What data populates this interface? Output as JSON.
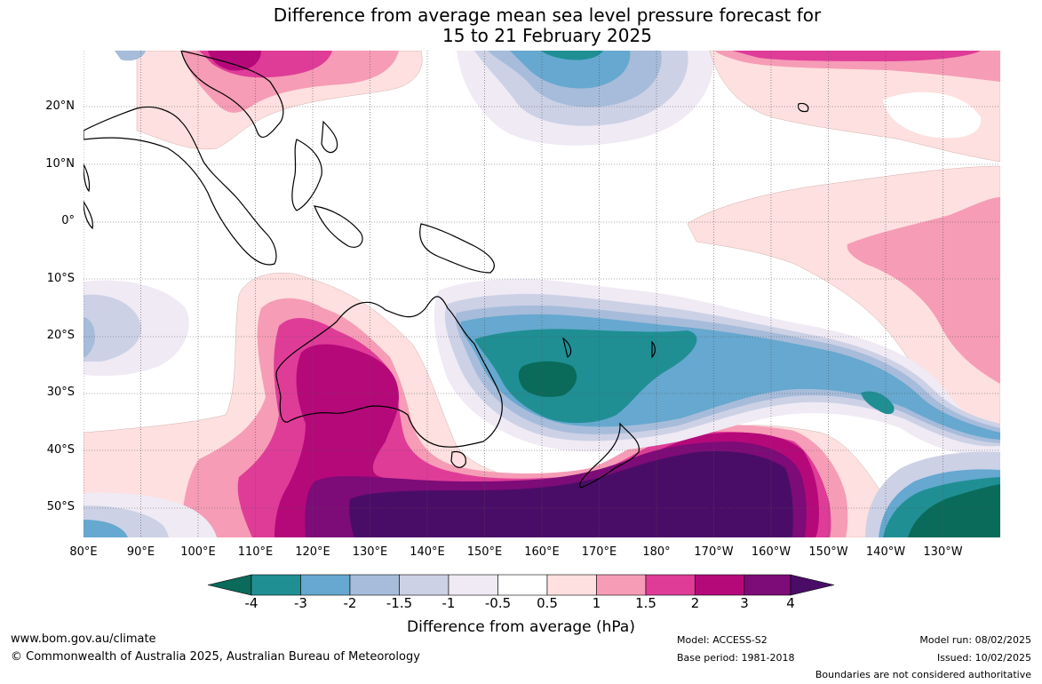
{
  "title_line1": "Difference from average mean sea level pressure forecast for",
  "title_line2": "15 to 21 February 2025",
  "lat_labels": [
    "20°N",
    "10°N",
    "0°",
    "10°S",
    "20°S",
    "30°S",
    "40°S",
    "50°S"
  ],
  "lon_labels": [
    "80°E",
    "90°E",
    "100°E",
    "110°E",
    "120°E",
    "130°E",
    "140°E",
    "150°E",
    "160°E",
    "170°E",
    "180°",
    "170°W",
    "160°W",
    "150°W",
    "140°W",
    "130°W"
  ],
  "colorbar": {
    "labels": [
      "-4",
      "-3",
      "-2",
      "-1.5",
      "-1",
      "-0.5",
      "0.5",
      "1",
      "1.5",
      "2",
      "3",
      "4"
    ],
    "colors": [
      "#0a6b5b",
      "#1f8f94",
      "#66a8cf",
      "#a6bcda",
      "#cdd1e6",
      "#efeaf4",
      "#ffffff",
      "#fde0df",
      "#f69cb6",
      "#df3c98",
      "#b5097a",
      "#7d0b78",
      "#4a0d67"
    ],
    "title": "Difference from average (hPa)"
  },
  "footer": {
    "website": "www.bom.gov.au/climate",
    "copyright": "© Commonwealth of Australia 2025, Australian Bureau of Meteorology",
    "model": "Model: ACCESS-S2",
    "base_period": "Base period: 1981-2018",
    "model_run": "Model run: 08/02/2025",
    "issued": "Issued: 10/02/2025",
    "disclaimer": "Boundaries are not considered authoritative"
  }
}
